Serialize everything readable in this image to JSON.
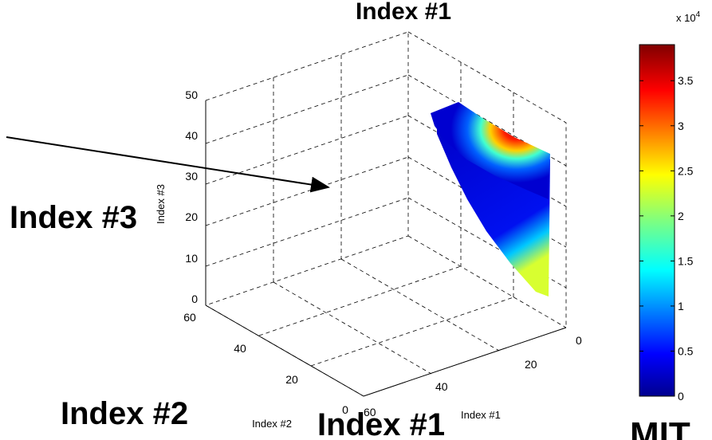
{
  "chart_data": {
    "type": "scatter",
    "title": "Index #1",
    "xlabel": "Index #1",
    "ylabel": "Index #2",
    "zlabel": "Index #3",
    "x_ticks": [
      "0",
      "20",
      "40",
      "60"
    ],
    "y_ticks": [
      "0",
      "20",
      "40",
      "60"
    ],
    "z_ticks": [
      "0",
      "10",
      "20",
      "30",
      "40",
      "50"
    ],
    "xlim": [
      0,
      60
    ],
    "ylim": [
      0,
      60
    ],
    "zlim": [
      0,
      50
    ],
    "grid": true,
    "colormap": "jet",
    "colorbar": {
      "multiplier": "x 10",
      "exponent": "4",
      "ticks": [
        "0",
        "0.5",
        "1",
        "1.5",
        "2",
        "2.5",
        "3",
        "3.5"
      ],
      "range": [
        0,
        3.9
      ]
    },
    "surface_description_points": [
      {
        "x": 0,
        "y": 0,
        "z": 48,
        "value": 0.6
      },
      {
        "x": 0,
        "y": 30,
        "z": 40,
        "value": 3.8
      },
      {
        "x": 10,
        "y": 20,
        "z": 38,
        "value": 3.0
      },
      {
        "x": 20,
        "y": 10,
        "z": 30,
        "value": 1.0
      },
      {
        "x": 30,
        "y": 0,
        "z": 10,
        "value": 2.2
      }
    ]
  },
  "annotations": {
    "big_title": "Index #1",
    "big_x": "Index #1",
    "big_y": "Index #2",
    "big_z": "Index #3"
  },
  "logo": {
    "text": "MIT"
  }
}
